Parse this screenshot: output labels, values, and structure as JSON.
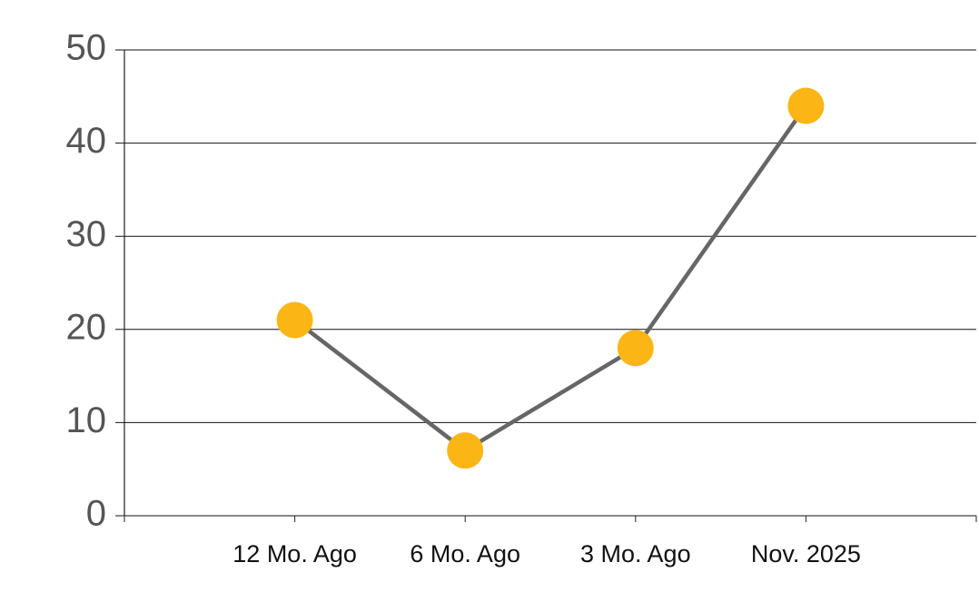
{
  "chart_data": {
    "type": "line",
    "categories": [
      "12 Mo. Ago",
      "6 Mo. Ago",
      "3 Mo. Ago",
      "Nov. 2025"
    ],
    "series": [
      {
        "values": [
          21,
          7,
          18,
          44
        ],
        "color": "#fbb515",
        "line_color": "#666666"
      }
    ],
    "ylim": [
      0,
      50
    ],
    "yticks": [
      0,
      10,
      20,
      30,
      40,
      50
    ],
    "grid": true
  }
}
